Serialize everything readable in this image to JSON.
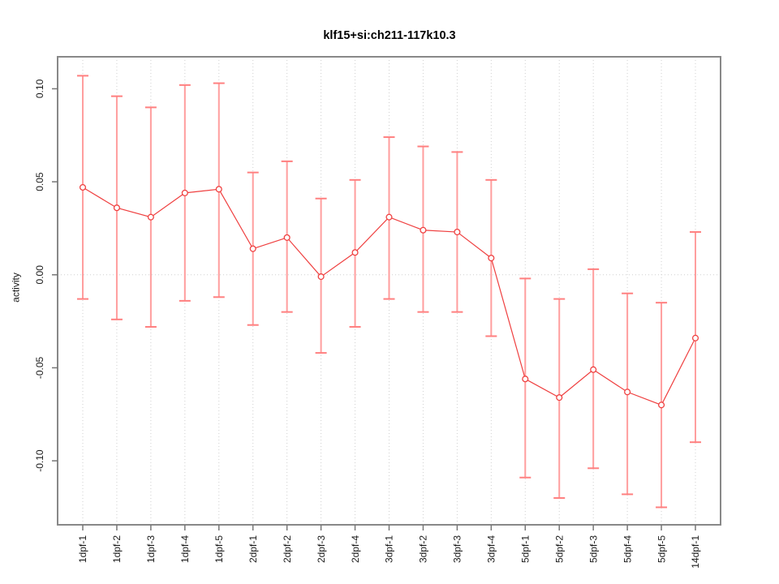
{
  "title": "klf15+si:ch211-117k10.3",
  "axes": {
    "ylabel": "activity",
    "ytick_labels": [
      "0.10",
      "0.05",
      "0.00",
      "-0.05",
      "-0.10"
    ]
  },
  "chart_data": {
    "type": "line",
    "title": "klf15+si:ch211-117k10.3",
    "xlabel": "",
    "ylabel": "activity",
    "categories": [
      "1dpf-1",
      "1dpf-2",
      "1dpf-3",
      "1dpf-4",
      "1dpf-5",
      "2dpf-1",
      "2dpf-2",
      "2dpf-3",
      "2dpf-4",
      "3dpf-1",
      "3dpf-2",
      "3dpf-3",
      "3dpf-4",
      "5dpf-1",
      "5dpf-2",
      "5dpf-3",
      "5dpf-4",
      "5dpf-5",
      "14dpf-1"
    ],
    "series": [
      {
        "name": "activity",
        "values": [
          0.047,
          0.036,
          0.031,
          0.044,
          0.046,
          0.014,
          0.02,
          -0.001,
          0.012,
          0.031,
          0.024,
          0.023,
          0.009,
          -0.056,
          -0.066,
          -0.051,
          -0.063,
          -0.07,
          -0.034
        ]
      }
    ],
    "error_bars": {
      "upper": [
        0.107,
        0.096,
        0.09,
        0.102,
        0.103,
        0.055,
        0.061,
        0.041,
        0.051,
        0.074,
        0.069,
        0.066,
        0.051,
        -0.002,
        -0.013,
        0.003,
        -0.01,
        -0.015,
        0.023
      ],
      "lower": [
        -0.013,
        -0.024,
        -0.028,
        -0.014,
        -0.012,
        -0.027,
        -0.02,
        -0.042,
        -0.028,
        -0.013,
        -0.02,
        -0.02,
        -0.033,
        -0.109,
        -0.12,
        -0.104,
        -0.118,
        -0.125,
        -0.09
      ]
    },
    "yticks": [
      0.1,
      0.05,
      0.0,
      -0.05,
      -0.1
    ],
    "ylim": [
      -0.1344,
      0.1172
    ],
    "grid": {
      "vertical_dotted_per_category": true,
      "horizontal_dotted_zero_line": true
    },
    "legend": "none",
    "marker": "open-circle",
    "colors": {
      "series_line": "#ef4040",
      "marker_stroke": "#ef4040",
      "error_bar": "#ff9e9e",
      "error_cap": "#ff8080",
      "grid": "#cfcfcf",
      "frame": "#888888",
      "tick": "#777777",
      "tick_text": "#1a1a1a"
    }
  }
}
